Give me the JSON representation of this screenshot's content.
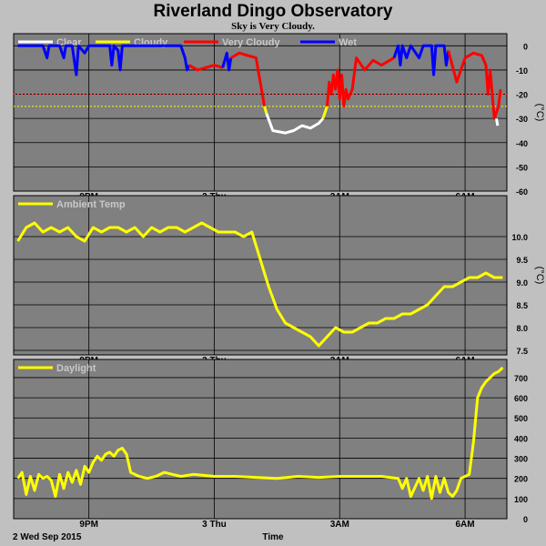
{
  "title": "Riverland Dingo Observatory",
  "subtitle": "Sky is Very Cloudy.",
  "footer": {
    "date": "2 Wed Sep 2015",
    "xlabel": "Time"
  },
  "colors": {
    "plot_bg": "#808080",
    "grid": "#000000",
    "clear": "#ffffff",
    "cloudy": "#ffff00",
    "very_cloudy": "#ff0000",
    "wet": "#0000ff",
    "threshold_red": "#ff4040",
    "threshold_yellow": "#ffff00"
  },
  "chart_data": [
    {
      "type": "line",
      "name": "sky",
      "ylabel": "(°C)",
      "ylim": [
        -60,
        5
      ],
      "yticks": [
        0,
        -10,
        -20,
        -30,
        -40,
        -50,
        -60
      ],
      "xticks": [
        "9PM",
        "3 Thu",
        "3AM",
        "6AM"
      ],
      "xlim": [
        19.2,
        31.0
      ],
      "thresholds": [
        {
          "value": -20,
          "color": "red"
        },
        {
          "value": -25,
          "color": "yellow"
        }
      ],
      "legend": [
        "Clear",
        "Cloudy",
        "Very Cloudy",
        "Wet"
      ],
      "segments": [
        {
          "state": "Wet",
          "points": [
            [
              19.3,
              0
            ],
            [
              19.9,
              0
            ],
            [
              20.0,
              -5
            ],
            [
              20.05,
              0
            ],
            [
              20.3,
              0
            ],
            [
              20.4,
              -5
            ],
            [
              20.45,
              0
            ],
            [
              20.6,
              0
            ],
            [
              20.7,
              -12
            ],
            [
              20.75,
              0
            ],
            [
              20.9,
              -3
            ],
            [
              21.0,
              0
            ],
            [
              21.5,
              0
            ],
            [
              21.55,
              -8
            ],
            [
              21.6,
              0
            ],
            [
              21.7,
              -2
            ],
            [
              21.75,
              -10
            ],
            [
              21.8,
              0
            ],
            [
              23.2,
              0
            ],
            [
              23.3,
              -5
            ],
            [
              23.35,
              -10
            ],
            [
              23.4,
              -8
            ]
          ]
        },
        {
          "state": "Very Cloudy",
          "points": [
            [
              23.4,
              -8
            ],
            [
              23.6,
              -10
            ],
            [
              23.8,
              -9
            ],
            [
              24.0,
              -8
            ],
            [
              24.2,
              -9
            ]
          ]
        },
        {
          "state": "Wet",
          "points": [
            [
              24.2,
              -9
            ],
            [
              24.3,
              -3
            ],
            [
              24.35,
              -10
            ],
            [
              24.4,
              -5
            ]
          ]
        },
        {
          "state": "Very Cloudy",
          "points": [
            [
              24.4,
              -5
            ],
            [
              24.6,
              -3
            ],
            [
              24.8,
              -4
            ],
            [
              25.0,
              -5
            ],
            [
              25.1,
              -15
            ],
            [
              25.2,
              -25
            ]
          ]
        },
        {
          "state": "Cloudy",
          "points": [
            [
              25.2,
              -25
            ],
            [
              25.25,
              -28
            ]
          ]
        },
        {
          "state": "Clear",
          "points": [
            [
              25.25,
              -28
            ],
            [
              25.4,
              -35
            ],
            [
              25.7,
              -36
            ],
            [
              25.9,
              -35
            ],
            [
              26.1,
              -33
            ],
            [
              26.3,
              -34
            ],
            [
              26.5,
              -32
            ],
            [
              26.6,
              -30
            ]
          ]
        },
        {
          "state": "Cloudy",
          "points": [
            [
              26.6,
              -30
            ],
            [
              26.7,
              -25
            ]
          ]
        },
        {
          "state": "Very Cloudy",
          "points": [
            [
              26.7,
              -25
            ],
            [
              26.75,
              -15
            ],
            [
              26.8,
              -20
            ],
            [
              26.85,
              -12
            ],
            [
              26.9,
              -18
            ],
            [
              26.95,
              -10
            ],
            [
              27.0,
              -22
            ],
            [
              27.05,
              -12
            ],
            [
              27.1,
              -25
            ],
            [
              27.15,
              -18
            ],
            [
              27.2,
              -22
            ],
            [
              27.3,
              -18
            ],
            [
              27.4,
              -5
            ],
            [
              27.6,
              -10
            ],
            [
              27.8,
              -6
            ],
            [
              28.0,
              -8
            ],
            [
              28.3,
              -5
            ]
          ]
        },
        {
          "state": "Wet",
          "points": [
            [
              28.3,
              -5
            ],
            [
              28.4,
              0
            ],
            [
              28.45,
              -8
            ],
            [
              28.5,
              0
            ],
            [
              28.6,
              -5
            ],
            [
              28.7,
              0
            ],
            [
              28.9,
              -5
            ],
            [
              29.0,
              0
            ],
            [
              29.2,
              0
            ],
            [
              29.25,
              -12
            ],
            [
              29.3,
              0
            ],
            [
              29.5,
              0
            ],
            [
              29.55,
              -8
            ],
            [
              29.6,
              -2
            ]
          ]
        },
        {
          "state": "Very Cloudy",
          "points": [
            [
              29.6,
              -2
            ],
            [
              29.8,
              -15
            ],
            [
              30.0,
              -5
            ],
            [
              30.2,
              -3
            ],
            [
              30.4,
              -4
            ],
            [
              30.5,
              -8
            ],
            [
              30.55,
              -20
            ],
            [
              30.6,
              -10
            ],
            [
              30.7,
              -30
            ],
            [
              30.8,
              -25
            ],
            [
              30.85,
              -18
            ]
          ]
        },
        {
          "state": "Clear",
          "points": [
            [
              30.75,
              -30
            ],
            [
              30.78,
              -33
            ]
          ]
        }
      ]
    },
    {
      "type": "line",
      "name": "Ambient Temp",
      "ylabel": "(°C)",
      "ylim": [
        7.4,
        10.9
      ],
      "yticks": [
        7.5,
        8.0,
        8.5,
        9.0,
        9.5,
        10.0
      ],
      "xticks": [
        "9PM",
        "3 Thu",
        "3AM",
        "6AM"
      ],
      "xlim": [
        19.2,
        31.0
      ],
      "legend": [
        "Ambient Temp"
      ],
      "x": [
        19.3,
        19.5,
        19.7,
        19.9,
        20.1,
        20.3,
        20.5,
        20.7,
        20.9,
        21.1,
        21.3,
        21.5,
        21.7,
        21.9,
        22.1,
        22.3,
        22.5,
        22.7,
        22.9,
        23.1,
        23.3,
        23.5,
        23.7,
        23.9,
        24.1,
        24.3,
        24.5,
        24.7,
        24.9,
        25.1,
        25.3,
        25.5,
        25.7,
        25.9,
        26.1,
        26.3,
        26.5,
        26.7,
        26.9,
        27.1,
        27.3,
        27.5,
        27.7,
        27.9,
        28.1,
        28.3,
        28.5,
        28.7,
        28.9,
        29.1,
        29.3,
        29.5,
        29.7,
        29.9,
        30.1,
        30.3,
        30.5,
        30.7,
        30.9
      ],
      "y": [
        9.9,
        10.2,
        10.3,
        10.1,
        10.2,
        10.1,
        10.2,
        10.0,
        9.9,
        10.2,
        10.1,
        10.2,
        10.2,
        10.1,
        10.2,
        10.0,
        10.2,
        10.1,
        10.2,
        10.2,
        10.1,
        10.2,
        10.3,
        10.2,
        10.1,
        10.1,
        10.1,
        10.0,
        10.1,
        9.5,
        8.9,
        8.4,
        8.1,
        8.0,
        7.9,
        7.8,
        7.6,
        7.8,
        8.0,
        7.9,
        7.9,
        8.0,
        8.1,
        8.1,
        8.2,
        8.2,
        8.3,
        8.3,
        8.4,
        8.5,
        8.7,
        8.9,
        8.9,
        9.0,
        9.1,
        9.1,
        9.2,
        9.1,
        9.1
      ]
    },
    {
      "type": "line",
      "name": "Daylight",
      "ylim": [
        0,
        790
      ],
      "yticks": [
        0,
        100,
        200,
        300,
        400,
        500,
        600,
        700
      ],
      "xticks": [
        "9PM",
        "3 Thu",
        "3AM",
        "6AM"
      ],
      "xlim": [
        19.2,
        31.0
      ],
      "legend": [
        "Daylight"
      ],
      "x": [
        19.3,
        19.4,
        19.5,
        19.6,
        19.7,
        19.8,
        19.9,
        20.0,
        20.1,
        20.2,
        20.3,
        20.4,
        20.5,
        20.6,
        20.7,
        20.8,
        20.9,
        21.0,
        21.1,
        21.2,
        21.3,
        21.4,
        21.5,
        21.6,
        21.7,
        21.8,
        21.9,
        22.0,
        22.2,
        22.4,
        22.6,
        22.8,
        23.0,
        23.2,
        23.5,
        24.0,
        24.5,
        25.0,
        25.5,
        26.0,
        26.5,
        27.0,
        27.5,
        28.0,
        28.4,
        28.5,
        28.6,
        28.7,
        28.9,
        29.0,
        29.1,
        29.2,
        29.3,
        29.4,
        29.5,
        29.6,
        29.7,
        29.8,
        29.9,
        30.0,
        30.1,
        30.2,
        30.3,
        30.4,
        30.5,
        30.6,
        30.7,
        30.8,
        30.9
      ],
      "y": [
        200,
        230,
        120,
        210,
        140,
        220,
        200,
        210,
        190,
        110,
        220,
        150,
        230,
        180,
        240,
        170,
        260,
        230,
        280,
        310,
        290,
        320,
        330,
        310,
        340,
        350,
        320,
        230,
        210,
        200,
        210,
        230,
        220,
        210,
        220,
        210,
        210,
        205,
        200,
        210,
        205,
        210,
        210,
        210,
        200,
        150,
        200,
        110,
        200,
        140,
        210,
        100,
        210,
        130,
        200,
        130,
        110,
        140,
        200,
        210,
        220,
        380,
        600,
        650,
        680,
        700,
        720,
        730,
        750
      ]
    }
  ]
}
